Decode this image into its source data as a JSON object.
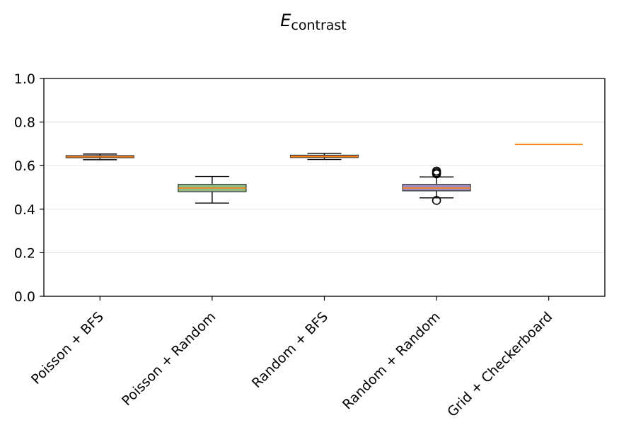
{
  "chart_data": {
    "type": "box",
    "title_main": "E",
    "title_sub": "contrast",
    "categories": [
      "Poisson + BFS",
      "Poisson + Random",
      "Random + BFS",
      "Random + Random",
      "Grid + Checkerboard"
    ],
    "ylim": [
      0,
      1.0
    ],
    "yticks": [
      "0.0",
      "0.2",
      "0.4",
      "0.6",
      "0.8",
      "1.0"
    ],
    "grid_y": true,
    "boxes": [
      {
        "category": "Poisson + BFS",
        "whisker_low": 0.627,
        "q1": 0.636,
        "median": 0.64,
        "q3": 0.646,
        "whisker_high": 0.653,
        "outliers": [],
        "fill": "#f0884a"
      },
      {
        "category": "Poisson + Random",
        "whisker_low": 0.428,
        "q1": 0.48,
        "median": 0.497,
        "q3": 0.514,
        "whisker_high": 0.55,
        "outliers": [],
        "fill": "#8dbd88"
      },
      {
        "category": "Random + BFS",
        "whisker_low": 0.628,
        "q1": 0.637,
        "median": 0.641,
        "q3": 0.648,
        "whisker_high": 0.656,
        "outliers": [],
        "fill": "#e8853c"
      },
      {
        "category": "Random + Random",
        "whisker_low": 0.452,
        "q1": 0.484,
        "median": 0.497,
        "q3": 0.514,
        "whisker_high": 0.548,
        "outliers": [
          0.44,
          0.562,
          0.568,
          0.575
        ],
        "fill": "#a08ec4"
      },
      {
        "category": "Grid + Checkerboard",
        "whisker_low": 0.697,
        "q1": 0.697,
        "median": 0.697,
        "q3": 0.697,
        "whisker_high": 0.697,
        "outliers": [],
        "fill": "#ffffff"
      }
    ],
    "median_color": "#ff7f0e",
    "grid_color": "#e6e6e6"
  }
}
